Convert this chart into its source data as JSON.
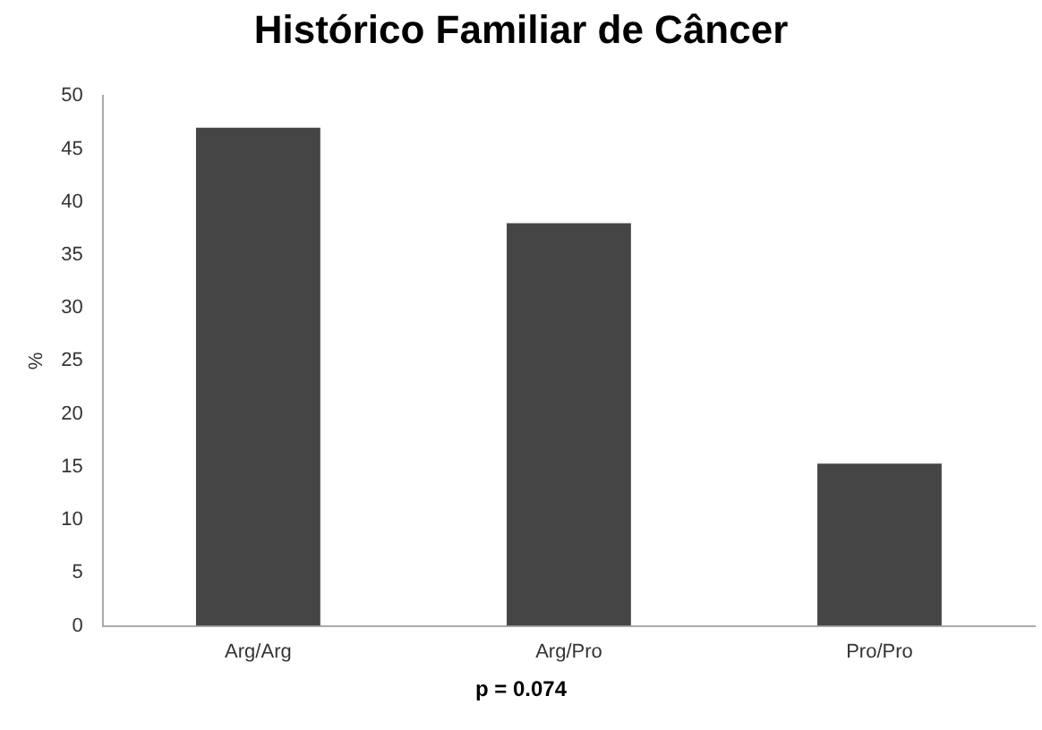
{
  "chart_data": {
    "type": "bar",
    "title": "Histórico Familiar de Câncer",
    "ylabel": "%",
    "categories": [
      "Arg/Arg",
      "Arg/Pro",
      "Pro/Pro"
    ],
    "values": [
      47,
      38,
      15.3
    ],
    "color": "#454545",
    "ylim": [
      0,
      50
    ],
    "yticks": [
      0,
      5,
      10,
      15,
      20,
      25,
      30,
      35,
      40,
      45,
      50
    ],
    "grid": false,
    "annotations": [
      "p = 0.074"
    ]
  }
}
